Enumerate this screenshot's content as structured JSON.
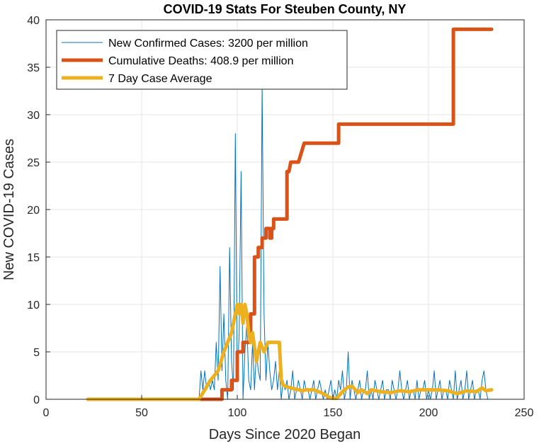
{
  "chart_data": {
    "type": "line",
    "title": "COVID-19 Stats For Steuben County, NY",
    "xlabel": "Days Since 2020 Began",
    "ylabel": "New COVID-19 Cases",
    "xlim": [
      0,
      250
    ],
    "ylim": [
      0,
      40
    ],
    "xticks": [
      0,
      50,
      100,
      150,
      200,
      250
    ],
    "yticks": [
      0,
      5,
      10,
      15,
      20,
      25,
      30,
      35,
      40
    ],
    "grid": true,
    "legend_position": "top-left",
    "series": [
      {
        "name": "New Confirmed Cases: 3200 per million",
        "color": "#0072BD",
        "style": "thin",
        "x": [
          22,
          80,
          81,
          82,
          83,
          84,
          85,
          86,
          87,
          88,
          89,
          90,
          91,
          92,
          93,
          94,
          95,
          96,
          97,
          98,
          99,
          100,
          101,
          102,
          103,
          104,
          105,
          106,
          107,
          108,
          109,
          110,
          111,
          112,
          113,
          114,
          115,
          116,
          117,
          118,
          119,
          120,
          121,
          122,
          123,
          124,
          125,
          126,
          127,
          128,
          129,
          130,
          131,
          132,
          133,
          134,
          135,
          136,
          137,
          138,
          139,
          140,
          141,
          142,
          143,
          144,
          145,
          146,
          147,
          148,
          149,
          150,
          151,
          152,
          153,
          154,
          155,
          156,
          157,
          158,
          159,
          160,
          161,
          162,
          163,
          164,
          165,
          166,
          167,
          168,
          169,
          170,
          171,
          172,
          173,
          174,
          175,
          176,
          177,
          178,
          179,
          180,
          181,
          182,
          183,
          184,
          185,
          186,
          187,
          188,
          189,
          190,
          191,
          192,
          193,
          194,
          195,
          196,
          197,
          198,
          199,
          200,
          201,
          202,
          203,
          204,
          205,
          206,
          207,
          208,
          209,
          210,
          211,
          212,
          213,
          214,
          215,
          216,
          217,
          218,
          219,
          220,
          221,
          222,
          223,
          224,
          225,
          226,
          227,
          228,
          229,
          230,
          231,
          232
        ],
        "values": [
          0,
          0,
          3,
          1,
          3,
          1,
          2,
          1,
          2,
          1,
          6,
          2,
          14,
          3,
          9,
          2,
          0,
          16,
          4,
          1,
          28,
          2,
          7,
          24,
          0,
          5,
          8,
          2,
          1,
          6,
          1,
          5,
          3,
          2,
          33,
          9,
          2,
          6,
          3,
          1,
          2,
          4,
          1,
          3,
          0,
          2,
          1,
          2,
          0,
          1,
          3,
          0,
          1,
          2,
          1,
          0,
          2,
          1,
          1,
          0,
          1,
          2,
          0,
          1,
          2,
          1,
          0,
          1,
          0,
          1,
          2,
          0,
          1,
          0,
          2,
          1,
          3,
          0,
          1,
          5,
          0,
          2,
          1,
          0,
          1,
          2,
          0,
          1,
          1,
          3,
          0,
          1,
          0,
          2,
          1,
          0,
          1,
          2,
          0,
          1,
          1,
          0,
          2,
          1,
          0,
          1,
          3,
          1,
          0,
          1,
          2,
          0,
          1,
          1,
          0,
          2,
          0,
          1,
          1,
          2,
          0,
          1,
          0,
          1,
          3,
          0,
          1,
          2,
          0,
          1,
          1,
          0,
          2,
          1,
          0,
          3,
          0,
          1,
          2,
          0,
          1,
          3,
          0,
          1,
          2,
          0,
          1,
          1,
          0,
          2,
          3,
          1,
          0,
          0
        ],
        "width": 1
      },
      {
        "name": "Cumulative Deaths: 408.9 per million",
        "color": "#D95319",
        "style": "thick",
        "x": [
          22,
          92,
          92,
          97,
          97,
          100,
          100,
          103,
          103,
          107,
          107,
          109,
          109,
          111,
          111,
          113,
          113,
          115,
          115,
          117,
          117,
          118,
          118,
          119,
          119,
          122,
          122,
          126,
          126,
          127,
          127,
          128,
          128,
          132,
          132,
          135,
          135,
          153,
          153,
          213,
          213,
          233
        ],
        "values": [
          0,
          0,
          1,
          1,
          2,
          2,
          5,
          5,
          6,
          6,
          9,
          9,
          15,
          15,
          16,
          16,
          17,
          17,
          18,
          18,
          17,
          17,
          18,
          18,
          19,
          19,
          19,
          19,
          24,
          24,
          24,
          25,
          25,
          25,
          25,
          27,
          27,
          27,
          29,
          29,
          39,
          39
        ],
        "width": 5
      },
      {
        "name": "7 Day Case Average",
        "color": "#EDB120",
        "style": "thick",
        "x": [
          22,
          80,
          83,
          86,
          90,
          93,
          95,
          97,
          99,
          100,
          101,
          102,
          103,
          104,
          105,
          106,
          107,
          108,
          110,
          112,
          114,
          116,
          118,
          120,
          122,
          123,
          124,
          126,
          128,
          130,
          132,
          134,
          136,
          140,
          145,
          148,
          150,
          152,
          155,
          158,
          160,
          163,
          165,
          168,
          170,
          175,
          180,
          185,
          190,
          195,
          200,
          205,
          210,
          215,
          220,
          225,
          228,
          230,
          233
        ],
        "values": [
          0,
          0,
          1,
          2,
          3,
          5,
          6,
          7,
          9,
          10,
          9,
          10,
          8,
          10,
          9,
          7,
          6,
          7,
          4,
          6,
          5,
          6,
          6,
          6,
          6,
          2,
          1.5,
          1.3,
          1.2,
          1.1,
          1.0,
          0.9,
          1.0,
          1.0,
          0.6,
          0.2,
          0.1,
          0.1,
          0.8,
          1.3,
          1.4,
          0.7,
          1.0,
          0.6,
          1.0,
          0.8,
          0.7,
          0.9,
          0.8,
          1.0,
          1.0,
          1.0,
          0.9,
          0.6,
          0.9,
          0.8,
          1.2,
          0.9,
          1.0
        ],
        "width": 5
      }
    ]
  }
}
